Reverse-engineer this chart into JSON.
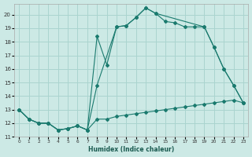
{
  "xlabel": "Humidex (Indice chaleur)",
  "background_color": "#cce9e5",
  "grid_color": "#aad4cf",
  "line_color": "#1a7a6e",
  "xlim": [
    -0.5,
    23.5
  ],
  "ylim": [
    11,
    20.8
  ],
  "xticks": [
    0,
    1,
    2,
    3,
    4,
    5,
    6,
    7,
    8,
    9,
    10,
    11,
    12,
    13,
    14,
    15,
    16,
    17,
    18,
    19,
    20,
    21,
    22,
    23
  ],
  "yticks": [
    11,
    12,
    13,
    14,
    15,
    16,
    17,
    18,
    19,
    20
  ],
  "series": [
    {
      "x": [
        0,
        1,
        2,
        3,
        4,
        5,
        6,
        7,
        8,
        9,
        10,
        11,
        12,
        13,
        14,
        15,
        16,
        17,
        18,
        19,
        20,
        21,
        22,
        23
      ],
      "y": [
        13,
        12.3,
        12.0,
        12.0,
        11.5,
        11.6,
        11.8,
        11.5,
        12.3,
        12.3,
        12.5,
        12.6,
        12.7,
        12.8,
        12.9,
        13.0,
        13.1,
        13.2,
        13.3,
        13.4,
        13.5,
        13.6,
        13.7,
        13.5
      ]
    },
    {
      "x": [
        0,
        1,
        2,
        3,
        4,
        5,
        6,
        7,
        8,
        10,
        11,
        12,
        13,
        14,
        15,
        16,
        17,
        18,
        19,
        20,
        21,
        22,
        23
      ],
      "y": [
        13,
        12.3,
        12.0,
        12.0,
        11.5,
        11.6,
        11.8,
        11.5,
        14.8,
        19.1,
        19.2,
        19.8,
        20.5,
        20.1,
        19.5,
        19.4,
        19.1,
        19.1,
        19.1,
        17.6,
        16.0,
        14.8,
        13.5
      ]
    },
    {
      "x": [
        0,
        1,
        2,
        3,
        4,
        5,
        6,
        7,
        8,
        9,
        10,
        11,
        12,
        13,
        14,
        19,
        20,
        21,
        22,
        23
      ],
      "y": [
        13,
        12.3,
        12.0,
        12.0,
        11.5,
        11.6,
        11.8,
        11.5,
        18.4,
        16.3,
        19.1,
        19.2,
        19.8,
        20.5,
        20.1,
        19.1,
        17.6,
        16.0,
        14.8,
        13.5
      ]
    }
  ]
}
